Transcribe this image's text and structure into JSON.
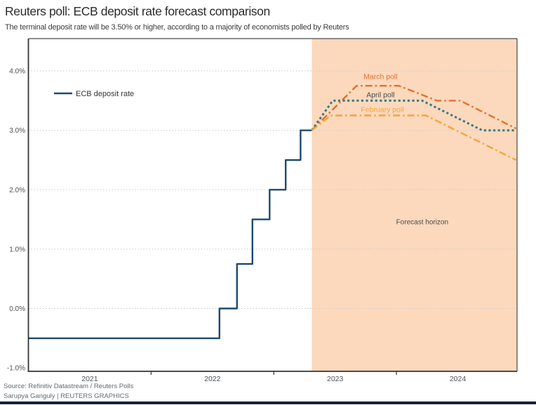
{
  "header": {
    "title": "Reuters poll: ECB deposit rate forecast comparison",
    "subtitle": "The terminal deposit rate will be 3.50% or higher, according to a majority of economists polled by Reuters"
  },
  "legend": {
    "ecb_label": "ECB deposit rate"
  },
  "footer": {
    "source": "Source: Refinitiv Datastream / Reuters Polls",
    "credit": "Sarupya Ganguly | REUTERS GRAPHICS"
  },
  "colors": {
    "ecb_line": "#1c4a70",
    "march_poll": "#e4702b",
    "april_poll": "#3b7a7b",
    "february_poll": "#f2a43c",
    "forecast_bg": "#fcd9bd",
    "grid": "#c9c9c9",
    "frame": "#4a4a4a",
    "axis_line": "#333333",
    "y_tick_text": "#4d4d4d",
    "x_tick_text": "#4a545e",
    "annotation_text": "#4a4a4a",
    "legend_text": "#333333",
    "bottom_bar": "#05263d"
  },
  "chart_data": {
    "type": "line",
    "title": "Reuters poll: ECB deposit rate forecast comparison",
    "xlabel": "",
    "ylabel": "",
    "x_domain": [
      2021.0,
      2024.983
    ],
    "y_domain": [
      -1.057,
      4.544
    ],
    "grid": "dotted horizontal",
    "forecast_start": 2023.31,
    "forecast_label": {
      "text": "Forecast horizon",
      "x": 2024.21,
      "y": 1.42
    },
    "x_ticks": {
      "marks": [
        2022,
        2023,
        2024
      ],
      "labels": [
        {
          "at": 2021.5,
          "label": "2021"
        },
        {
          "at": 2022.5,
          "label": "2022"
        },
        {
          "at": 2023.5,
          "label": "2023"
        },
        {
          "at": 2024.5,
          "label": "2024"
        }
      ]
    },
    "y_ticks": [
      {
        "value": 4.0,
        "label": "4.0%",
        "grid": true
      },
      {
        "value": 3.0,
        "label": "3.0%",
        "grid": true
      },
      {
        "value": 2.0,
        "label": "2.0%",
        "grid": true
      },
      {
        "value": 1.0,
        "label": "1.0%",
        "grid": true
      },
      {
        "value": 0.0,
        "label": "0.0%",
        "grid": true
      },
      {
        "value": -1.0,
        "label": "-1.0%",
        "grid": false
      }
    ],
    "series": [
      {
        "name": "ECB deposit rate",
        "style": "solid",
        "color": "#1c4a70",
        "width": 2.4,
        "points": [
          [
            2021.0,
            -0.5
          ],
          [
            2022.557,
            -0.5
          ],
          [
            2022.557,
            0.0
          ],
          [
            2022.7,
            0.0
          ],
          [
            2022.7,
            0.75
          ],
          [
            2022.826,
            0.75
          ],
          [
            2022.826,
            1.5
          ],
          [
            2022.966,
            1.5
          ],
          [
            2022.966,
            2.0
          ],
          [
            2023.097,
            2.0
          ],
          [
            2023.097,
            2.5
          ],
          [
            2023.218,
            2.5
          ],
          [
            2023.218,
            3.0
          ],
          [
            2023.31,
            3.0
          ]
        ]
      },
      {
        "name": "March poll",
        "style": "dashdot",
        "color": "#e4702b",
        "width": 2.4,
        "points": [
          [
            2023.31,
            3.0
          ],
          [
            2023.675,
            3.75
          ],
          [
            2024.02,
            3.75
          ],
          [
            2024.33,
            3.5
          ],
          [
            2024.52,
            3.5
          ],
          [
            2024.975,
            3.03
          ]
        ],
        "label": {
          "text": "March poll",
          "x": 2023.87,
          "y": 3.865,
          "color": "#e4702b"
        }
      },
      {
        "name": "April poll",
        "style": "dotted",
        "color": "#3b7a7b",
        "width": 3,
        "points": [
          [
            2023.31,
            3.0
          ],
          [
            2023.48,
            3.5
          ],
          [
            2024.21,
            3.5
          ],
          [
            2024.7,
            3.0
          ],
          [
            2024.975,
            3.0
          ]
        ],
        "label": {
          "text": "April poll",
          "x": 2023.87,
          "y": 3.555,
          "color": "#454b4b"
        }
      },
      {
        "name": "February poll",
        "style": "dashdot",
        "color": "#f2a43c",
        "width": 2.4,
        "points": [
          [
            2023.31,
            3.0
          ],
          [
            2023.465,
            3.25
          ],
          [
            2024.24,
            3.25
          ],
          [
            2024.975,
            2.5
          ]
        ],
        "label": {
          "text": "February poll",
          "x": 2023.885,
          "y": 3.31,
          "color": "#f2a43c"
        }
      }
    ],
    "legend_position": "inside top-left"
  }
}
